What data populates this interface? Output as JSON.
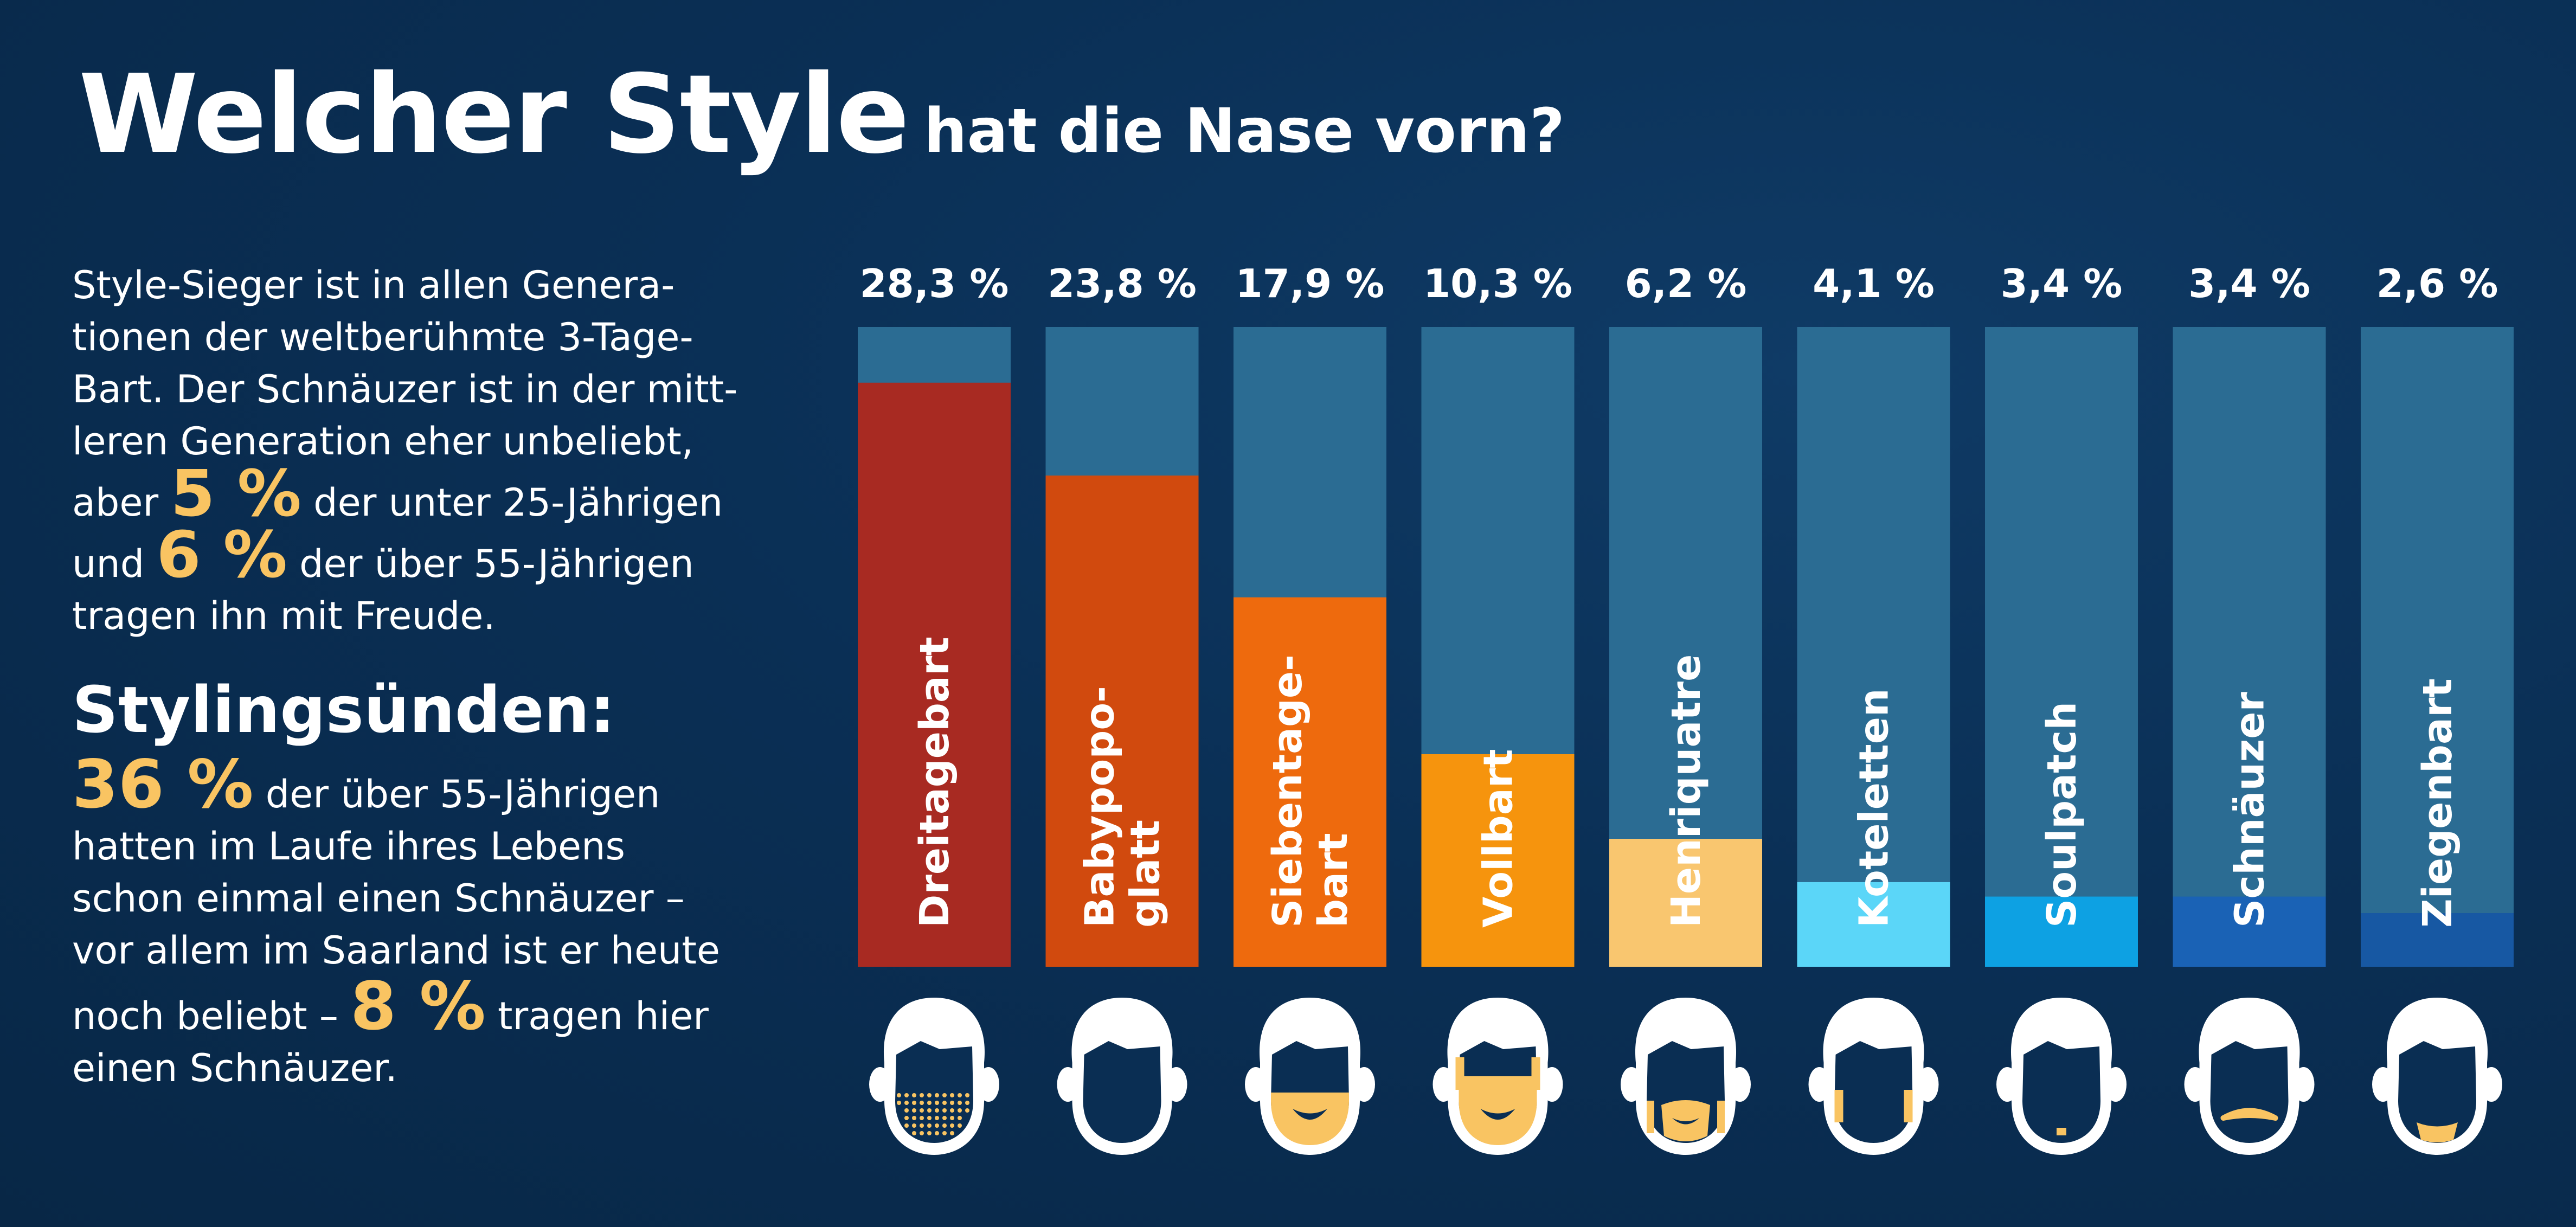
{
  "title": {
    "main": "Welcher Style",
    "sub": "hat die Nase vorn?"
  },
  "story": {
    "p1_text": "Style-Sieger ist in allen Genera­tionen der weltberühmte 3-Tage-Bart. Der Schnäuzer ist in der mitt­leren Generation eher unbeliebt,",
    "p1_line1": "Style-Sieger ist in allen Genera-",
    "p1_line2": "tionen der weltberühmte 3-Tage-",
    "p1_line3": "Bart. Der Schnäuzer ist in der mitt-",
    "p1_line4": "leren Generation eher unbeliebt,",
    "p1_aber": "aber",
    "p1_stat1": "5 %",
    "p1_rest1": "der unter 25-Jährigen",
    "p1_und": "und",
    "p1_stat2": "6 %",
    "p1_rest2": "der über 55-Jährigen",
    "p1_line7": "tragen ihn mit Freude.",
    "heading": "Stylingsünden:",
    "p2_stat1": "36 %",
    "p2_rest1": "der über 55-Jährigen",
    "p2_line2": "hatten im Laufe ihres Lebens",
    "p2_line3": "schon einmal einen Schnäuzer –",
    "p2_line4": "vor allem im Saarland ist er heute",
    "p2_noch": "noch beliebt –",
    "p2_stat2": "8 %",
    "p2_rest2": "tragen hier",
    "p2_line6": "einen Schnäuzer."
  },
  "chart_data": {
    "type": "bar",
    "orientation": "vertical",
    "ylim": [
      0,
      31
    ],
    "categories": [
      "Dreitagebart",
      "Babypopo-glatt",
      "Siebentage-bart",
      "Vollbart",
      "Henriquatre",
      "Koteletten",
      "Soulpatch",
      "Schnäuzer",
      "Ziegenbart"
    ],
    "category_lines": [
      [
        "Dreitagebart"
      ],
      [
        "Babypopo-",
        "glatt"
      ],
      [
        "Siebentage-",
        "bart"
      ],
      [
        "Vollbart"
      ],
      [
        "Henriquatre"
      ],
      [
        "Koteletten"
      ],
      [
        "Soulpatch"
      ],
      [
        "Schnäuzer"
      ],
      [
        "Ziegenbart"
      ]
    ],
    "values": [
      28.3,
      23.8,
      17.9,
      10.3,
      6.2,
      4.1,
      3.4,
      3.4,
      2.6
    ],
    "value_labels": [
      "28,3 %",
      "23,8 %",
      "17,9 %",
      "10,3 %",
      "6,2 %",
      "4,1 %",
      "3,4 %",
      "3,4 %",
      "2,6 %"
    ],
    "colors": [
      "#a82a22",
      "#d14a0e",
      "#ee6a0d",
      "#f6940d",
      "#f9c66f",
      "#5bd6f8",
      "#0da1e3",
      "#1a62b5",
      "#1758a3"
    ],
    "background_color": "#2b6c93",
    "icons": [
      "face-stubble-icon",
      "face-clean-icon",
      "face-week-beard-icon",
      "face-full-beard-icon",
      "face-henriquatre-icon",
      "face-sideburns-icon",
      "face-soulpatch-icon",
      "face-mustache-icon",
      "face-goatee-icon"
    ]
  }
}
